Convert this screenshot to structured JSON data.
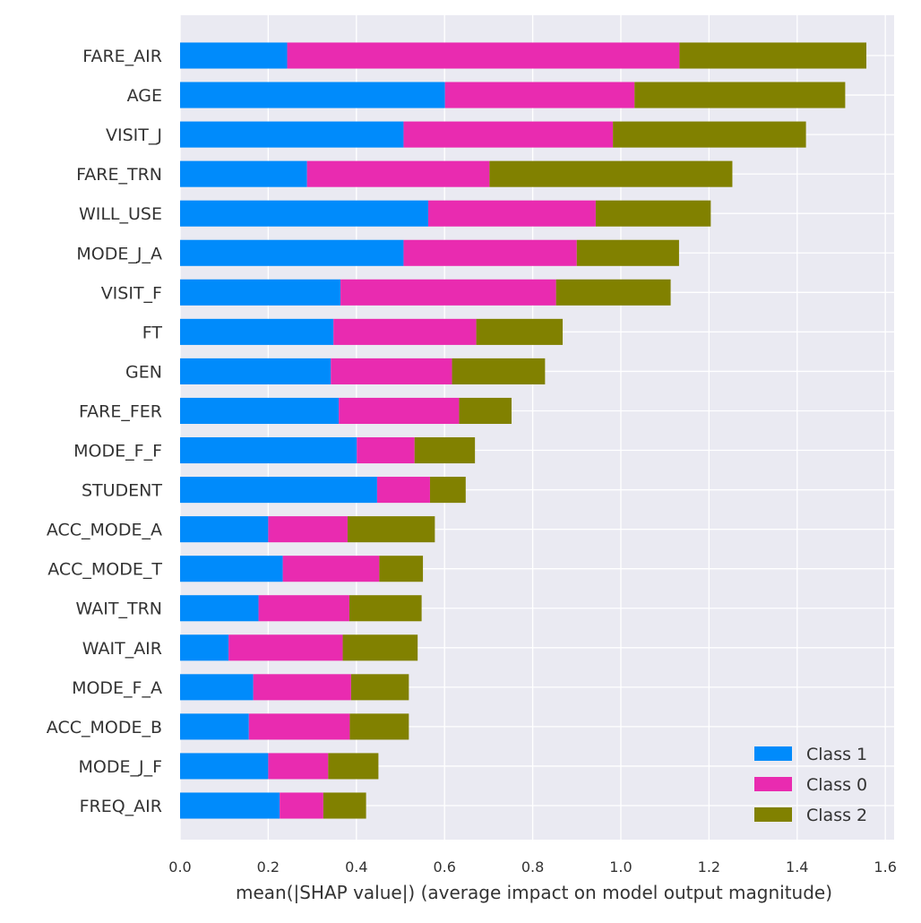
{
  "chart_data": {
    "type": "bar",
    "orientation": "horizontal",
    "stacked": true,
    "title": "",
    "xlabel": "mean(|SHAP value|) (average impact on model output magnitude)",
    "ylabel": "",
    "xlim": [
      0,
      1.62
    ],
    "x_ticks": [
      "0.0",
      "0.2",
      "0.4",
      "0.6",
      "0.8",
      "1.0",
      "1.2",
      "1.4",
      "1.6"
    ],
    "grid": true,
    "legend_position": "bottom-right",
    "categories": [
      "FARE_AIR",
      "AGE",
      "VISIT_J",
      "FARE_TRN",
      "WILL_USE",
      "MODE_J_A",
      "VISIT_F",
      "FT",
      "GEN",
      "FARE_FER",
      "MODE_F_F",
      "STUDENT",
      "ACC_MODE_A",
      "ACC_MODE_T",
      "WAIT_TRN",
      "WAIT_AIR",
      "MODE_F_A",
      "ACC_MODE_B",
      "MODE_J_F",
      "FREQ_AIR"
    ],
    "series": [
      {
        "name": "Class 1",
        "color": "#008bfb",
        "values": [
          0.243,
          0.601,
          0.507,
          0.288,
          0.563,
          0.507,
          0.364,
          0.348,
          0.342,
          0.36,
          0.401,
          0.447,
          0.2,
          0.233,
          0.178,
          0.11,
          0.166,
          0.156,
          0.2,
          0.226
        ]
      },
      {
        "name": "Class 0",
        "color": "#e92bb0",
        "values": [
          0.89,
          0.43,
          0.475,
          0.414,
          0.38,
          0.393,
          0.489,
          0.324,
          0.275,
          0.273,
          0.131,
          0.12,
          0.18,
          0.219,
          0.206,
          0.259,
          0.222,
          0.229,
          0.136,
          0.099
        ]
      },
      {
        "name": "Class 2",
        "color": "#818100",
        "values": [
          0.424,
          0.478,
          0.438,
          0.551,
          0.261,
          0.232,
          0.26,
          0.196,
          0.211,
          0.119,
          0.137,
          0.081,
          0.198,
          0.099,
          0.164,
          0.17,
          0.131,
          0.134,
          0.114,
          0.097
        ]
      }
    ]
  }
}
